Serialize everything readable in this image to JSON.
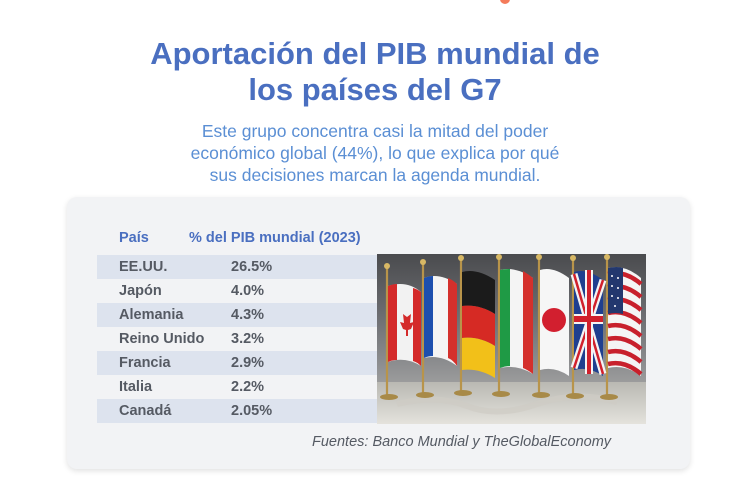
{
  "title_line1": "Aportación del PIB mundial de",
  "title_line2": "los países del G7",
  "subtitle": {
    "line1": "Este grupo concentra casi la mitad del poder",
    "line2": "económico global (44%), lo que explica por qué",
    "line3": "sus decisiones marcan la agenda mundial."
  },
  "table": {
    "header_country": "País",
    "header_share": "% del PIB mundial (2023)",
    "rows": [
      {
        "country": "EE.UU.",
        "share": "26.5%"
      },
      {
        "country": "Japón",
        "share": "4.0%"
      },
      {
        "country": "Alemania",
        "share": "4.3%"
      },
      {
        "country": "Reino Unido",
        "share": "3.2%"
      },
      {
        "country": "Francia",
        "share": "2.9%"
      },
      {
        "country": "Italia",
        "share": "2.2%"
      },
      {
        "country": "Canadá",
        "share": "2.05%"
      }
    ]
  },
  "source": "Fuentes: Banco Mundial y TheGlobalEconomy",
  "colors": {
    "title": "#4a6fc0",
    "subtitle": "#5b8fd4",
    "row_shade": "#dde3ee",
    "card": "#f2f3f5"
  }
}
